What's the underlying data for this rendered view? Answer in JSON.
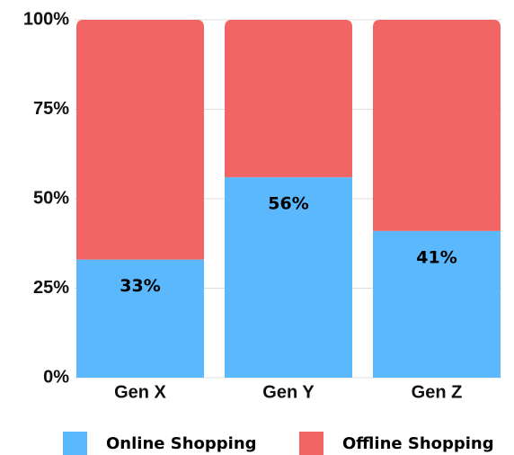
{
  "chart_data": {
    "type": "stacked_bar",
    "categories": [
      "Gen X",
      "Gen Y",
      "Gen Z"
    ],
    "series": [
      {
        "name": "Online Shopping",
        "color": "#5bb8fd",
        "values": [
          33,
          56,
          41
        ],
        "value_labels": [
          "33%",
          "56%",
          "41%"
        ]
      },
      {
        "name": "Offline Shopping",
        "color": "#f26565",
        "values": [
          67,
          44,
          59
        ]
      }
    ],
    "ylim": [
      0,
      100
    ],
    "yticks": [
      {
        "value": 0,
        "label": "0%"
      },
      {
        "value": 25,
        "label": "25%"
      },
      {
        "value": 50,
        "label": "50%"
      },
      {
        "value": 75,
        "label": "75%"
      },
      {
        "value": 100,
        "label": "100%"
      }
    ],
    "grid": true,
    "legend": "bottom"
  }
}
